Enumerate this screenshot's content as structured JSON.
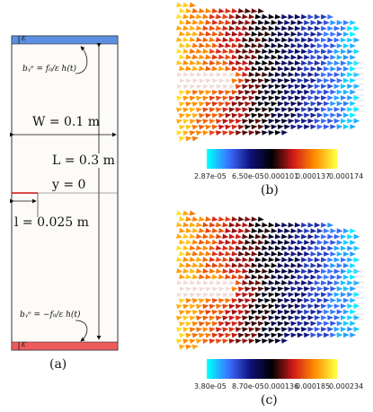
{
  "panel_a": {
    "caption": "(a)",
    "epsilon_top": "ε",
    "epsilon_bottom": "ε",
    "width_label": "W = 0.1 m",
    "length_label": "L = 0.3 m",
    "y_label": "y = 0",
    "crack_label": "l = 0.025 m",
    "bc_top": "bᵧᵉ = f₀/ε h(t)",
    "bc_bottom": "bᵧᵉ = −f₀/ε h(t)",
    "colors": {
      "top_band": "#5b8fe0",
      "bottom_band": "#ee5b5b",
      "crack": "#cc1111"
    }
  },
  "panel_b": {
    "caption": "(b)",
    "colorbar_ticks": [
      "2.87e-05",
      "6.50e-05",
      "0.000101",
      "0.000137",
      "0.000174"
    ]
  },
  "panel_c": {
    "caption": "(c)",
    "colorbar_ticks": [
      "3.80e-05",
      "8.70e-05",
      "0.000136",
      "0.000185",
      "0.000234"
    ]
  },
  "colormap": [
    "#00ffff",
    "#3d6cff",
    "#10107a",
    "#000000",
    "#d11a1a",
    "#ff8c00",
    "#ffff40"
  ]
}
